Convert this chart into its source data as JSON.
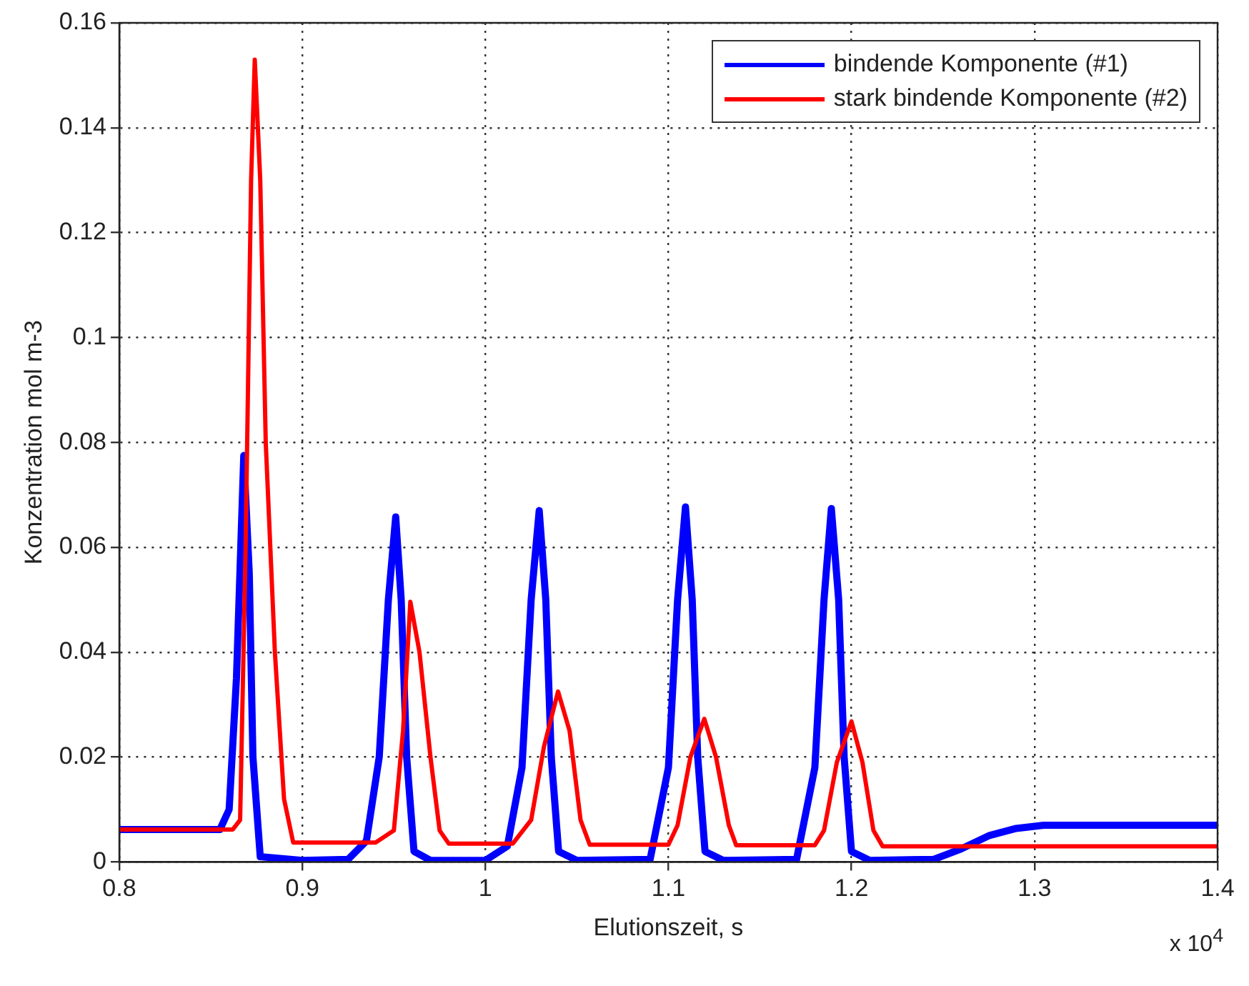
{
  "chart_data": {
    "type": "line",
    "xlabel": "Elutionszeit, s",
    "ylabel": "Konzentration mol m-3",
    "annotations": [
      "x 10$^{4}$"
    ],
    "xlim": [
      0.8,
      1.4
    ],
    "xticks": [
      0.8,
      0.9,
      1,
      1.1,
      1.2,
      1.3,
      1.4
    ],
    "ylim": [
      0,
      0.16
    ],
    "yticks": [
      0,
      0.02,
      0.04,
      0.06,
      0.08,
      0.1,
      0.12,
      0.14,
      0.16
    ],
    "grid": true,
    "legend": "top right",
    "series": [
      {
        "name": "bindende Komponente (#1)",
        "color": "#0000ff",
        "x": [
          0.8,
          0.855,
          0.86,
          0.864,
          0.868,
          0.871,
          0.873,
          0.877,
          0.9,
          0.925,
          0.935,
          0.942,
          0.947,
          0.951,
          0.954,
          0.957,
          0.961,
          0.97,
          1.0,
          1.012,
          1.02,
          1.025,
          1.0294,
          1.033,
          1.036,
          1.04,
          1.05,
          1.09,
          1.1,
          1.105,
          1.1093,
          1.113,
          1.116,
          1.12,
          1.13,
          1.17,
          1.18,
          1.185,
          1.189,
          1.193,
          1.196,
          1.2,
          1.21,
          1.245,
          1.26,
          1.275,
          1.29,
          1.305,
          1.4
        ],
        "values": [
          0.0062,
          0.0062,
          0.01,
          0.035,
          0.0775,
          0.055,
          0.02,
          0.001,
          0.0003,
          0.0005,
          0.004,
          0.02,
          0.05,
          0.0658,
          0.05,
          0.02,
          0.002,
          0.0003,
          0.0003,
          0.003,
          0.018,
          0.05,
          0.067,
          0.05,
          0.02,
          0.002,
          0.0003,
          0.0005,
          0.018,
          0.05,
          0.0677,
          0.05,
          0.02,
          0.002,
          0.0003,
          0.0005,
          0.018,
          0.05,
          0.0674,
          0.05,
          0.02,
          0.002,
          0.0003,
          0.0005,
          0.0025,
          0.005,
          0.0064,
          0.007,
          0.007
        ]
      },
      {
        "name": "stark bindende Komponente (#2)",
        "color": "#ff0000",
        "x": [
          0.8,
          0.862,
          0.866,
          0.869,
          0.872,
          0.874,
          0.877,
          0.88,
          0.885,
          0.89,
          0.895,
          0.94,
          0.95,
          0.955,
          0.959,
          0.964,
          0.97,
          0.975,
          0.98,
          1.015,
          1.025,
          1.032,
          1.0397,
          1.046,
          1.052,
          1.057,
          1.1,
          1.105,
          1.112,
          1.1196,
          1.126,
          1.133,
          1.137,
          1.18,
          1.185,
          1.192,
          1.2,
          1.206,
          1.212,
          1.217,
          1.4
        ],
        "values": [
          0.0062,
          0.0062,
          0.008,
          0.06,
          0.13,
          0.153,
          0.13,
          0.08,
          0.04,
          0.012,
          0.0037,
          0.0037,
          0.006,
          0.025,
          0.0496,
          0.04,
          0.02,
          0.006,
          0.0035,
          0.0035,
          0.008,
          0.022,
          0.0325,
          0.025,
          0.008,
          0.0033,
          0.0033,
          0.007,
          0.02,
          0.0273,
          0.02,
          0.007,
          0.0032,
          0.0032,
          0.006,
          0.019,
          0.0268,
          0.019,
          0.006,
          0.003,
          0.003
        ]
      }
    ]
  }
}
